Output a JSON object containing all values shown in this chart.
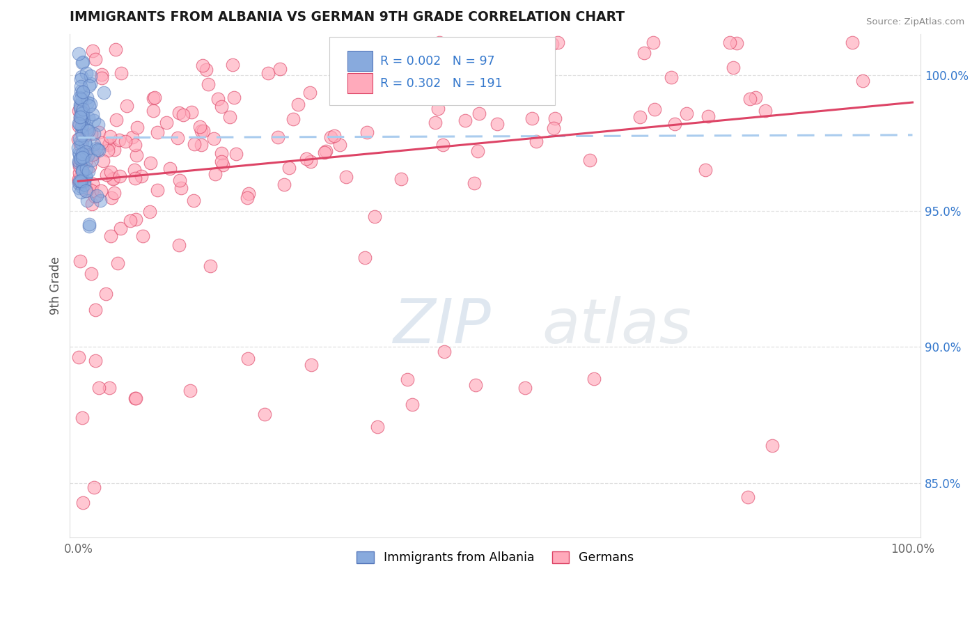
{
  "title": "IMMIGRANTS FROM ALBANIA VS GERMAN 9TH GRADE CORRELATION CHART",
  "source": "Source: ZipAtlas.com",
  "ylabel": "9th Grade",
  "legend_blue_label": "Immigrants from Albania",
  "legend_pink_label": "Germans",
  "r_blue": 0.002,
  "n_blue": 97,
  "r_pink": 0.302,
  "n_pink": 191,
  "blue_color": "#88aadd",
  "pink_color": "#ffaabb",
  "trendline_blue_color": "#aaccee",
  "trendline_pink_color": "#dd4466",
  "watermark_zip_color": "#c8d8e8",
  "watermark_atlas_color": "#d0d8e0",
  "background_color": "#ffffff",
  "title_color": "#1a1a1a",
  "legend_r_color": "#3377cc",
  "grid_color": "#dddddd",
  "right_axis_color": "#3377cc",
  "source_color": "#888888",
  "ylabel_color": "#555555"
}
